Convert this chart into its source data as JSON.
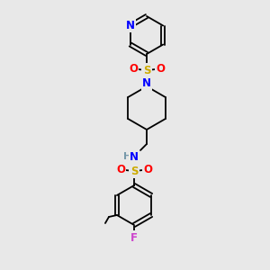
{
  "bg_color": "#e8e8e8",
  "atom_colors": {
    "N": "#0000ff",
    "O": "#ff0000",
    "S": "#ccaa00",
    "F": "#cc44cc",
    "H": "#7799aa",
    "C": "#000000"
  },
  "figsize": [
    3.0,
    3.0
  ],
  "dpi": 100,
  "coords": {
    "scale": 1.0
  }
}
